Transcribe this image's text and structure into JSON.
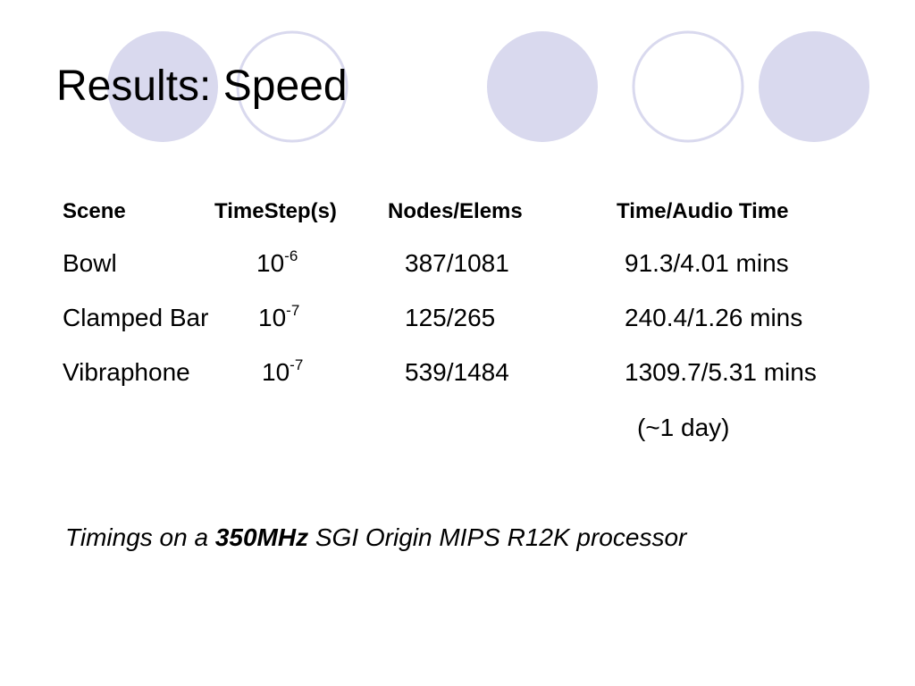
{
  "title": "Results: Speed",
  "table": {
    "header": [
      "Scene",
      "TimeStep(s)",
      "Nodes/Elems",
      "Time/Audio Time"
    ],
    "rows": [
      [
        "Bowl",
        {
          "base": "10",
          "exp": "-6"
        },
        "387/1081",
        "91.3/4.01 mins"
      ],
      [
        "Clamped Bar",
        {
          "base": "10",
          "exp": "-7"
        },
        "125/265",
        "240.4/1.26 mins"
      ],
      [
        "Vibraphone",
        {
          "base": "10",
          "exp": "-7"
        },
        "539/1484",
        "1309.7/5.31 mins"
      ]
    ],
    "note": "(~1 day)"
  },
  "footnote": {
    "before": "Timings on a",
    "bold": "350MHz",
    "after": "SGI Origin MIPS R12K processor"
  }
}
